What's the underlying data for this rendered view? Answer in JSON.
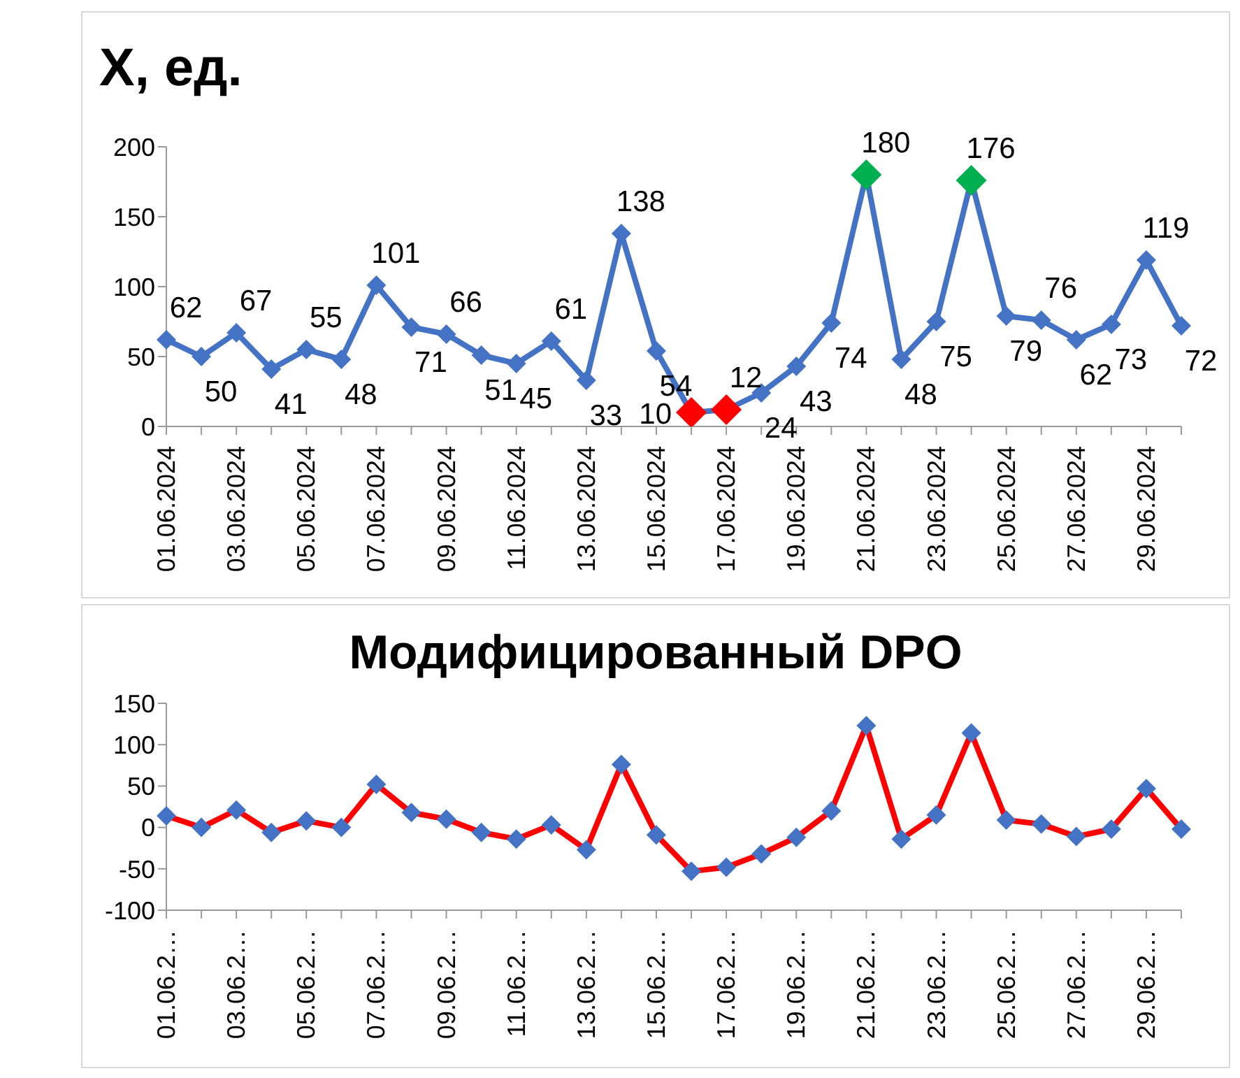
{
  "chart_data": [
    {
      "type": "line",
      "title": "X, ед.",
      "categories": [
        "01.06.2024",
        null,
        "03.06.2024",
        null,
        "05.06.2024",
        null,
        "07.06.2024",
        null,
        "09.06.2024",
        null,
        "11.06.2024",
        null,
        "13.06.2024",
        null,
        "15.06.2024",
        null,
        "17.06.2024",
        null,
        "19.06.2024",
        null,
        "21.06.2024",
        null,
        "23.06.2024",
        null,
        "25.06.2024",
        null,
        "27.06.2024",
        null,
        "29.06.2024",
        null
      ],
      "series": [
        {
          "color": "#4472c4",
          "colors": [
            "#4472c4",
            "#4472c4",
            "#4472c4",
            "#4472c4",
            "#4472c4",
            "#4472c4",
            "#4472c4",
            "#4472c4",
            "#4472c4",
            "#4472c4",
            "#4472c4",
            "#4472c4",
            "#4472c4",
            "#4472c4",
            "#4472c4",
            "#ff0000",
            "#ff0000",
            "#4472c4",
            "#4472c4",
            "#4472c4",
            "#00b050",
            "#4472c4",
            "#4472c4",
            "#00b050",
            "#4472c4",
            "#4472c4",
            "#4472c4",
            "#4472c4",
            "#4472c4",
            "#4472c4"
          ],
          "values": [
            62,
            50,
            67,
            41,
            55,
            48,
            101,
            71,
            66,
            51,
            45,
            61,
            33,
            138,
            54,
            10,
            12,
            24,
            43,
            74,
            180,
            48,
            75,
            176,
            79,
            76,
            62,
            73,
            119,
            72
          ]
        }
      ],
      "ylim": [
        0,
        200
      ],
      "yticks": [
        0,
        50,
        100,
        150,
        200
      ],
      "marker": "diamond",
      "data_labels": true
    },
    {
      "type": "line",
      "title": "Модифицированный DPO",
      "categories": [
        "01.06.2…",
        null,
        "03.06.2…",
        null,
        "05.06.2…",
        null,
        "07.06.2…",
        null,
        "09.06.2…",
        null,
        "11.06.2…",
        null,
        "13.06.2…",
        null,
        "15.06.2…",
        null,
        "17.06.2…",
        null,
        "19.06.2…",
        null,
        "21.06.2…",
        null,
        "23.06.2…",
        null,
        "25.06.2…",
        null,
        "27.06.2…",
        null,
        "29.06.2…",
        null
      ],
      "series": [
        {
          "color": "#ff0000",
          "colors": [
            "#4472c4",
            "#4472c4",
            "#4472c4",
            "#4472c4",
            "#4472c4",
            "#4472c4",
            "#4472c4",
            "#4472c4",
            "#4472c4",
            "#4472c4",
            "#4472c4",
            "#4472c4",
            "#4472c4",
            "#4472c4",
            "#4472c4",
            "#4472c4",
            "#4472c4",
            "#4472c4",
            "#4472c4",
            "#4472c4",
            "#4472c4",
            "#4472c4",
            "#4472c4",
            "#4472c4",
            "#4472c4",
            "#4472c4",
            "#4472c4",
            "#4472c4",
            "#4472c4",
            "#4472c4"
          ],
          "values": [
            14,
            0,
            21,
            -6,
            8,
            0,
            52,
            18,
            10,
            -6,
            -14,
            3,
            -27,
            76,
            -9,
            -53,
            -48,
            -32,
            -12,
            20,
            123,
            -14,
            15,
            114,
            9,
            4,
            -11,
            -2,
            47,
            -2
          ]
        }
      ],
      "ylim": [
        -100,
        150
      ],
      "yticks": [
        -100,
        -50,
        0,
        50,
        100,
        150
      ],
      "marker": "diamond"
    }
  ]
}
